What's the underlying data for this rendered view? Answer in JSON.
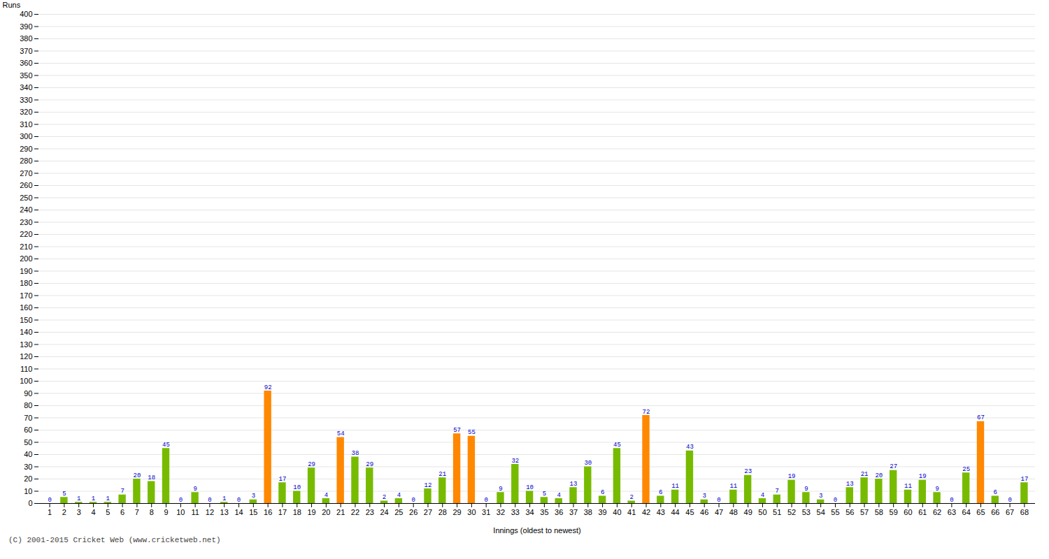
{
  "chart_data": {
    "type": "bar",
    "xlabel": "Innings (oldest to newest)",
    "ylabel": "Runs",
    "categories": [
      1,
      2,
      3,
      4,
      5,
      6,
      7,
      8,
      9,
      10,
      11,
      12,
      13,
      14,
      15,
      16,
      17,
      18,
      19,
      20,
      21,
      22,
      23,
      24,
      25,
      26,
      27,
      28,
      29,
      30,
      31,
      32,
      33,
      34,
      35,
      36,
      37,
      38,
      39,
      40,
      41,
      42,
      43,
      44,
      45,
      46,
      47,
      48,
      49,
      50,
      51,
      52,
      53,
      54,
      55,
      56,
      57,
      58,
      59,
      60,
      61,
      62,
      63,
      64,
      65,
      66,
      67,
      68
    ],
    "values": [
      0,
      5,
      1,
      1,
      1,
      7,
      20,
      18,
      45,
      0,
      9,
      0,
      1,
      0,
      3,
      92,
      17,
      10,
      29,
      4,
      54,
      38,
      29,
      2,
      4,
      0,
      12,
      21,
      57,
      55,
      0,
      9,
      32,
      10,
      5,
      4,
      13,
      30,
      6,
      45,
      2,
      72,
      6,
      11,
      43,
      3,
      0,
      11,
      23,
      4,
      7,
      19,
      9,
      3,
      0,
      13,
      21,
      20,
      27,
      11,
      19,
      9,
      0,
      25,
      67,
      6,
      0,
      17
    ],
    "colors": [
      "#77bb00",
      "#77bb00",
      "#77bb00",
      "#77bb00",
      "#77bb00",
      "#77bb00",
      "#77bb00",
      "#77bb00",
      "#77bb00",
      "#77bb00",
      "#77bb00",
      "#77bb00",
      "#77bb00",
      "#77bb00",
      "#77bb00",
      "#ff8800",
      "#77bb00",
      "#77bb00",
      "#77bb00",
      "#77bb00",
      "#ff8800",
      "#77bb00",
      "#77bb00",
      "#77bb00",
      "#77bb00",
      "#77bb00",
      "#77bb00",
      "#77bb00",
      "#ff8800",
      "#ff8800",
      "#77bb00",
      "#77bb00",
      "#77bb00",
      "#77bb00",
      "#77bb00",
      "#77bb00",
      "#77bb00",
      "#77bb00",
      "#77bb00",
      "#77bb00",
      "#77bb00",
      "#ff8800",
      "#77bb00",
      "#77bb00",
      "#77bb00",
      "#77bb00",
      "#77bb00",
      "#77bb00",
      "#77bb00",
      "#77bb00",
      "#77bb00",
      "#77bb00",
      "#77bb00",
      "#77bb00",
      "#77bb00",
      "#77bb00",
      "#77bb00",
      "#77bb00",
      "#77bb00",
      "#77bb00",
      "#77bb00",
      "#77bb00",
      "#77bb00",
      "#77bb00",
      "#ff8800",
      "#77bb00",
      "#77bb00",
      "#77bb00"
    ],
    "ylim": [
      0,
      400
    ],
    "yticks": [
      0,
      10,
      20,
      30,
      40,
      50,
      60,
      70,
      80,
      90,
      100,
      110,
      120,
      130,
      140,
      150,
      160,
      170,
      180,
      190,
      200,
      210,
      220,
      230,
      240,
      250,
      260,
      270,
      280,
      290,
      300,
      310,
      320,
      330,
      340,
      350,
      360,
      370,
      380,
      390,
      400
    ],
    "grid": true,
    "data_labels": true,
    "annotations": [
      "(C) 2001-2015 Cricket Web (www.cricketweb.net)"
    ]
  }
}
